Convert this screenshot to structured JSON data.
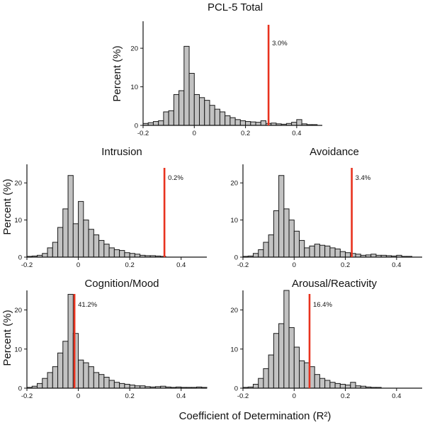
{
  "figure": {
    "shared_xlabel": "Coefficient of Determination (R²)"
  },
  "colors": {
    "bar_fill": "#c2c2c2",
    "bar_stroke": "#1a1a1a",
    "reference_line": "#e8321e"
  },
  "chart_data": [
    {
      "type": "bar",
      "title": "PCL-5 Total",
      "ylabel": "Percent (%)",
      "xlabel": "",
      "bin_start": -0.2,
      "bin_width": 0.02,
      "xlim": [
        -0.2,
        0.5
      ],
      "ylim": [
        0,
        27
      ],
      "xticks": [
        "-0.2",
        "0",
        "0.2",
        "0.4"
      ],
      "yticks": [
        "0",
        "10",
        "20"
      ],
      "values": [
        0.5,
        0.7,
        1.0,
        1.2,
        3.5,
        3.8,
        8.0,
        9.0,
        20.5,
        13.5,
        8.0,
        7.2,
        6.5,
        5.2,
        4.2,
        3.5,
        2.5,
        2.0,
        1.5,
        1.2,
        1.0,
        0.9,
        0.8,
        1.2,
        0.5,
        0.6,
        0.4,
        0.3,
        0.5,
        0.8,
        1.5,
        0.4,
        0.2,
        0.2
      ],
      "reference": {
        "x": 0.29,
        "label": "3.0%"
      },
      "grid": false,
      "legend": "none"
    },
    {
      "type": "bar",
      "title": "Intrusion",
      "ylabel": "Percent (%)",
      "xlabel": "",
      "bin_start": -0.2,
      "bin_width": 0.02,
      "xlim": [
        -0.2,
        0.5
      ],
      "ylim": [
        0,
        25
      ],
      "xticks": [
        "-0.2",
        "0",
        "0.2",
        "0.4"
      ],
      "yticks": [
        "0",
        "10",
        "20"
      ],
      "values": [
        0.2,
        0.3,
        0.5,
        1.0,
        2.5,
        4.0,
        8.0,
        13.0,
        22.0,
        9.0,
        15.0,
        10.0,
        7.5,
        6.0,
        4.5,
        3.5,
        2.5,
        2.0,
        1.8,
        1.2,
        1.0,
        0.8,
        0.5,
        0.4,
        0.4,
        0.3,
        0.2
      ],
      "reference": {
        "x": 0.335,
        "label": "0.2%"
      },
      "grid": false,
      "legend": "none"
    },
    {
      "type": "bar",
      "title": "Avoidance",
      "ylabel": "",
      "xlabel": "",
      "bin_start": -0.2,
      "bin_width": 0.02,
      "xlim": [
        -0.2,
        0.5
      ],
      "ylim": [
        0,
        25
      ],
      "xticks": [
        "-0.2",
        "0",
        "0.2",
        "0.4"
      ],
      "yticks": [
        "0",
        "10",
        "20"
      ],
      "values": [
        0.2,
        0.3,
        1.0,
        2.0,
        4.0,
        6.0,
        12.5,
        22.0,
        13.0,
        10.0,
        7.0,
        4.5,
        2.5,
        3.0,
        3.5,
        3.2,
        3.0,
        2.5,
        2.2,
        1.5,
        1.2,
        1.0,
        0.8,
        0.5,
        0.6,
        0.8,
        0.5,
        0.5,
        0.4,
        0.3,
        0.5,
        0.2,
        0.2
      ],
      "reference": {
        "x": 0.225,
        "label": "3.4%"
      },
      "grid": false,
      "legend": "none"
    },
    {
      "type": "bar",
      "title": "Cognition/Mood",
      "ylabel": "Percent (%)",
      "xlabel": "",
      "bin_start": -0.2,
      "bin_width": 0.02,
      "xlim": [
        -0.2,
        0.5
      ],
      "ylim": [
        0,
        25
      ],
      "xticks": [
        "-0.2",
        "0",
        "0.2",
        "0.4"
      ],
      "yticks": [
        "0",
        "10",
        "20"
      ],
      "values": [
        0.2,
        0.5,
        1.2,
        2.5,
        4.0,
        5.5,
        9.0,
        12.0,
        24.0,
        14.0,
        7.2,
        6.5,
        5.5,
        4.0,
        3.5,
        2.8,
        2.0,
        1.5,
        1.2,
        1.0,
        0.8,
        0.6,
        0.6,
        0.4,
        0.3,
        0.4,
        0.5,
        0.3,
        0.2,
        0.3,
        0.2,
        0.2,
        0.2,
        0.3,
        0.2
      ],
      "reference": {
        "x": -0.015,
        "label": "41.2%"
      },
      "grid": false,
      "legend": "none"
    },
    {
      "type": "bar",
      "title": "Arousal/Reactivity",
      "ylabel": "",
      "xlabel": "",
      "bin_start": -0.2,
      "bin_width": 0.02,
      "xlim": [
        -0.2,
        0.5
      ],
      "ylim": [
        0,
        25
      ],
      "xticks": [
        "-0.2",
        "0",
        "0.2",
        "0.4"
      ],
      "yticks": [
        "0",
        "10",
        "20"
      ],
      "values": [
        0.2,
        0.3,
        1.0,
        2.5,
        5.0,
        8.5,
        14.0,
        16.5,
        25.0,
        15.5,
        10.5,
        7.0,
        6.5,
        5.5,
        3.5,
        2.5,
        2.0,
        1.5,
        1.2,
        1.0,
        0.8,
        1.5,
        0.6,
        0.5,
        0.3,
        0.2,
        0.2
      ],
      "reference": {
        "x": 0.06,
        "label": "16.4%"
      },
      "grid": false,
      "legend": "none"
    }
  ]
}
